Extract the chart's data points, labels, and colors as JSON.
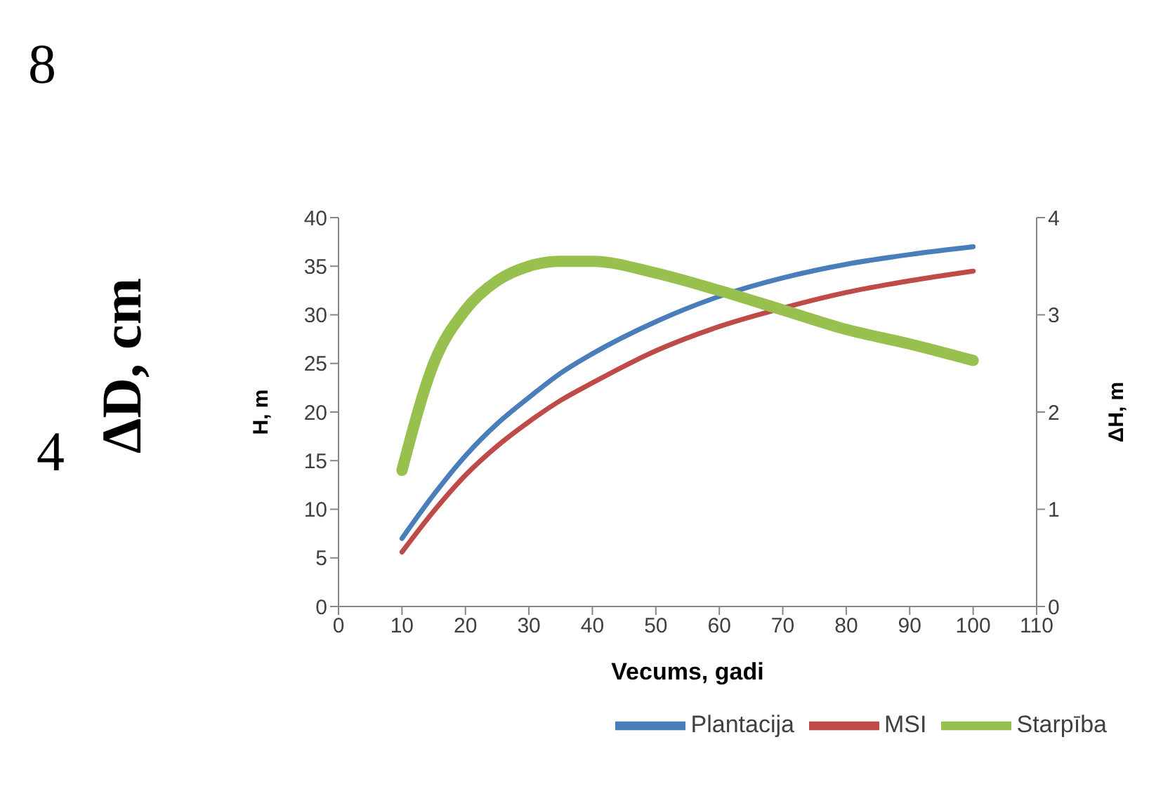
{
  "chart_data": {
    "type": "line",
    "xlabel": "Vecums, gadi",
    "ylabel": "H, m",
    "y2label": "ΔH, m",
    "x": [
      10,
      15,
      20,
      25,
      30,
      35,
      40,
      50,
      60,
      70,
      80,
      90,
      100
    ],
    "series": [
      {
        "name": "Plantacija",
        "color": "#4a7ebb",
        "values": [
          7,
          11.5,
          15.5,
          18.8,
          21.5,
          24,
          26,
          29.3,
          31.9,
          33.8,
          35.2,
          36.2,
          37
        ]
      },
      {
        "name": "MSI",
        "color": "#be4b48",
        "values": [
          5.6,
          9.8,
          13.5,
          16.5,
          19,
          21.2,
          23,
          26.3,
          28.8,
          30.7,
          32.3,
          33.5,
          34.5
        ]
      },
      {
        "name": "Starpība",
        "color": "#98c04f",
        "axis": "y2",
        "values": [
          1.4,
          2.5,
          3.05,
          3.35,
          3.5,
          3.55,
          3.55,
          3.43,
          3.25,
          3.05,
          2.85,
          2.7,
          2.53
        ]
      }
    ],
    "xlim": [
      0,
      110
    ],
    "xticks": [
      0,
      10,
      20,
      30,
      40,
      50,
      60,
      70,
      80,
      90,
      100,
      110
    ],
    "ylim": [
      0,
      40
    ],
    "yticks": [
      0,
      5,
      10,
      15,
      20,
      25,
      30,
      35,
      40
    ],
    "y2lim": [
      0,
      4
    ],
    "y2ticks": [
      0,
      1,
      2,
      3,
      4
    ],
    "grid": false,
    "legend": "bottom right",
    "marker": "none",
    "line_style": "solid",
    "annotations": [
      "8",
      "4",
      "ΔD, cm"
    ]
  }
}
